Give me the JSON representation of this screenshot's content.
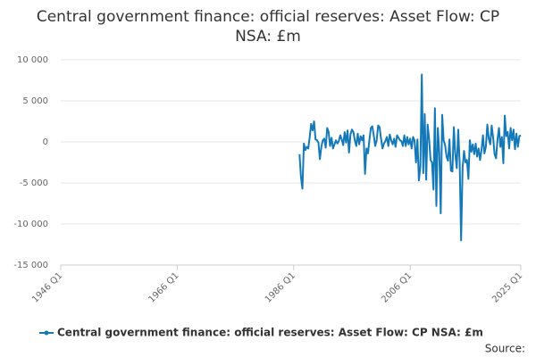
{
  "chart_data": {
    "type": "line",
    "title": "Central government finance: official reserves: Asset Flow: CP NSA: £m",
    "source": "Source:",
    "x": [
      "1987 Q1",
      "1987 Q2",
      "1987 Q3",
      "1987 Q4",
      "1988 Q1",
      "1988 Q2",
      "1988 Q3",
      "1988 Q4",
      "1989 Q1",
      "1989 Q2",
      "1989 Q3",
      "1989 Q4",
      "1990 Q1",
      "1990 Q2",
      "1990 Q3",
      "1990 Q4",
      "1991 Q1",
      "1991 Q2",
      "1991 Q3",
      "1991 Q4",
      "1992 Q1",
      "1992 Q2",
      "1992 Q3",
      "1992 Q4",
      "1993 Q1",
      "1993 Q2",
      "1993 Q3",
      "1993 Q4",
      "1994 Q1",
      "1994 Q2",
      "1994 Q3",
      "1994 Q4",
      "1995 Q1",
      "1995 Q2",
      "1995 Q3",
      "1995 Q4",
      "1996 Q1",
      "1996 Q2",
      "1996 Q3",
      "1996 Q4",
      "1997 Q1",
      "1997 Q2",
      "1997 Q3",
      "1997 Q4",
      "1998 Q1",
      "1998 Q2",
      "1998 Q3",
      "1998 Q4",
      "1999 Q1",
      "1999 Q2",
      "1999 Q3",
      "1999 Q4",
      "2000 Q1",
      "2000 Q2",
      "2000 Q3",
      "2000 Q4",
      "2001 Q1",
      "2001 Q2",
      "2001 Q3",
      "2001 Q4",
      "2002 Q1",
      "2002 Q2",
      "2002 Q3",
      "2002 Q4",
      "2003 Q1",
      "2003 Q2",
      "2003 Q3",
      "2003 Q4",
      "2004 Q1",
      "2004 Q2",
      "2004 Q3",
      "2004 Q4",
      "2005 Q1",
      "2005 Q2",
      "2005 Q3",
      "2005 Q4",
      "2006 Q1",
      "2006 Q2",
      "2006 Q3",
      "2006 Q4",
      "2007 Q1",
      "2007 Q2",
      "2007 Q3",
      "2007 Q4",
      "2008 Q1",
      "2008 Q2",
      "2008 Q3",
      "2008 Q4",
      "2009 Q1",
      "2009 Q2",
      "2009 Q3",
      "2009 Q4",
      "2010 Q1",
      "2010 Q2",
      "2010 Q3",
      "2010 Q4",
      "2011 Q1",
      "2011 Q2",
      "2011 Q3",
      "2011 Q4",
      "2012 Q1",
      "2012 Q2",
      "2012 Q3",
      "2012 Q4",
      "2013 Q1",
      "2013 Q2",
      "2013 Q3",
      "2013 Q4",
      "2014 Q1",
      "2014 Q2",
      "2014 Q3",
      "2014 Q4",
      "2015 Q1",
      "2015 Q2",
      "2015 Q3",
      "2015 Q4",
      "2016 Q1",
      "2016 Q2",
      "2016 Q3",
      "2016 Q4",
      "2017 Q1",
      "2017 Q2",
      "2017 Q3",
      "2017 Q4",
      "2018 Q1",
      "2018 Q2",
      "2018 Q3",
      "2018 Q4",
      "2019 Q1",
      "2019 Q2",
      "2019 Q3",
      "2019 Q4",
      "2020 Q1",
      "2020 Q2",
      "2020 Q3",
      "2020 Q4",
      "2021 Q1",
      "2021 Q2",
      "2021 Q3",
      "2021 Q4",
      "2022 Q1",
      "2022 Q2",
      "2022 Q3",
      "2022 Q4",
      "2023 Q1",
      "2023 Q2",
      "2023 Q3",
      "2023 Q4",
      "2024 Q1",
      "2024 Q2",
      "2024 Q3",
      "2024 Q4",
      "2025 Q1"
    ],
    "series": [
      {
        "name": "Central government finance: official reserves: Asset Flow: CP NSA: £m",
        "color": "#1479b8",
        "values": [
          -1500,
          -4300,
          -5700,
          -200,
          -1000,
          -600,
          -800,
          600,
          2200,
          1400,
          2500,
          300,
          200,
          -100,
          -2100,
          -600,
          200,
          400,
          -700,
          1700,
          1200,
          -500,
          500,
          -800,
          -300,
          200,
          -200,
          100,
          800,
          300,
          -400,
          1200,
          -100,
          1400,
          -1300,
          900,
          1500,
          1200,
          200,
          -500,
          1000,
          -300,
          700,
          200,
          800,
          -3900,
          -800,
          -1400,
          200,
          1700,
          1900,
          800,
          -500,
          200,
          2000,
          1800,
          400,
          -800,
          -200,
          100,
          600,
          -500,
          900,
          200,
          -300,
          400,
          -600,
          800,
          500,
          200,
          100,
          -500,
          800,
          -500,
          600,
          -300,
          400,
          -800,
          600,
          200,
          -2500,
          300,
          -4700,
          -3000,
          8200,
          -3800,
          3400,
          -4600,
          2100,
          400,
          -2200,
          -2500,
          -5800,
          4100,
          -7800,
          1700,
          -1200,
          -8700,
          3300,
          200,
          -400,
          -1800,
          -2300,
          300,
          -3500,
          -3600,
          1800,
          -1500,
          -3200,
          1500,
          -2500,
          -12000,
          -3200,
          -1100,
          -2500,
          -2200,
          -4500,
          200,
          -1200,
          -300,
          -1500,
          -200,
          -1800,
          -800,
          -2200,
          -1000,
          800,
          -1400,
          -600,
          2100,
          400,
          -300,
          2000,
          500,
          -1500,
          -2000,
          300,
          1700,
          -600,
          600,
          -2600,
          3200,
          700,
          1200,
          -800,
          1700,
          200,
          1500,
          -900,
          1000,
          -600,
          700,
          800
        ]
      }
    ],
    "xlim": [
      "1946 Q1",
      "2025 Q1"
    ],
    "xticks": [
      "1946 Q1",
      "1966 Q1",
      "1986 Q1",
      "2006 Q1",
      "2025 Q1"
    ],
    "ylim": [
      -15000,
      10000
    ],
    "yticks": [
      {
        "value": -15000,
        "label": "-15 000"
      },
      {
        "value": -10000,
        "label": "-10 000"
      },
      {
        "value": -5000,
        "label": "-5 000"
      },
      0,
      {
        "value": 5000,
        "label": "5 000"
      },
      {
        "value": 10000,
        "label": "10 000"
      }
    ],
    "grid": true,
    "legend": "bottom"
  }
}
